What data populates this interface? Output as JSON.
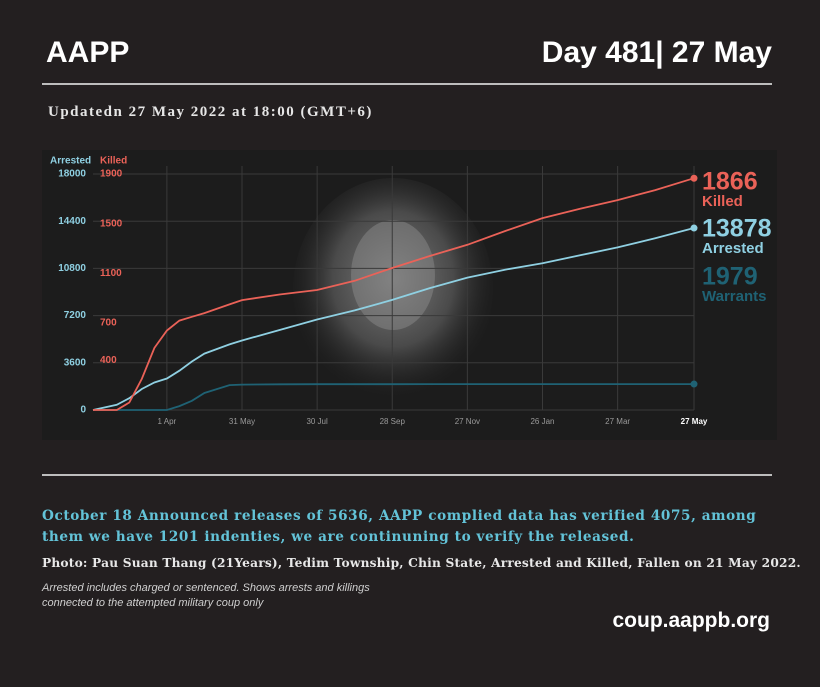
{
  "header": {
    "left": "AAPP",
    "right": "Day 481| 27 May"
  },
  "updated": "Updatedn 27 May 2022 at 18:00 (GMT+6)",
  "chart_data": {
    "type": "line",
    "ylabel": "Arrested",
    "y2label": "Killed",
    "x": [
      1,
      20,
      30,
      40,
      50,
      60,
      70,
      80,
      90,
      110,
      120,
      150,
      180,
      210,
      240,
      270,
      300,
      330,
      360,
      390,
      420,
      450,
      481
    ],
    "xlim": [
      1,
      481
    ],
    "xticks": [
      {
        "value": 60,
        "label": "1 Apr"
      },
      {
        "value": 120,
        "label": "31 May"
      },
      {
        "value": 180,
        "label": "30 Jul"
      },
      {
        "value": 240,
        "label": "28 Sep"
      },
      {
        "value": 300,
        "label": "27 Nov"
      },
      {
        "value": 360,
        "label": "26 Jan"
      },
      {
        "value": 420,
        "label": "27 Mar"
      },
      {
        "value": 481,
        "label": "27 May"
      }
    ],
    "ylim": [
      0,
      18000
    ],
    "yticks": [
      0,
      3600,
      7200,
      10800,
      14400,
      18000
    ],
    "y2lim": [
      0,
      1900
    ],
    "y2ticks": [
      400,
      700,
      1100,
      1500,
      1900
    ],
    "grid": true,
    "series": [
      {
        "name": "Arrested",
        "color": "#8fd0e2",
        "values": [
          0,
          400,
          900,
          1600,
          2100,
          2400,
          3000,
          3700,
          4300,
          5000,
          5300,
          6100,
          6900,
          7600,
          8400,
          9300,
          10100,
          10700,
          11200,
          11800,
          12400,
          13100,
          13878
        ]
      },
      {
        "name": "Killed",
        "color": "#ea6258",
        "axis": "y2",
        "values": [
          0,
          0,
          60,
          250,
          500,
          640,
          720,
          750,
          780,
          850,
          885,
          930,
          966,
          1040,
          1143,
          1240,
          1330,
          1440,
          1545,
          1620,
          1690,
          1770,
          1866
        ]
      },
      {
        "name": "Warrants",
        "color": "#1f6274",
        "values": [
          0,
          0,
          0,
          0,
          0,
          0,
          300,
          700,
          1300,
          1900,
          1940,
          1960,
          1965,
          1968,
          1970,
          1972,
          1974,
          1975,
          1976,
          1977,
          1978,
          1979,
          1979
        ]
      }
    ]
  },
  "statement": "October 18 Announced releases of 5636, AAPP complied data has verified 4075, among them we have 1201 indenties, we are continuning to verify the released.",
  "caption": "Photo: Pau Suan Thang (21Years), Tedim Township, Chin State, Arrested and Killed, Fallen on  21 May 2022.",
  "footnote": [
    "Arrested includes charged or sentenced. Shows arrests and killings",
    "connected to the attempted military coup only"
  ],
  "website": "coup.aappb.org"
}
